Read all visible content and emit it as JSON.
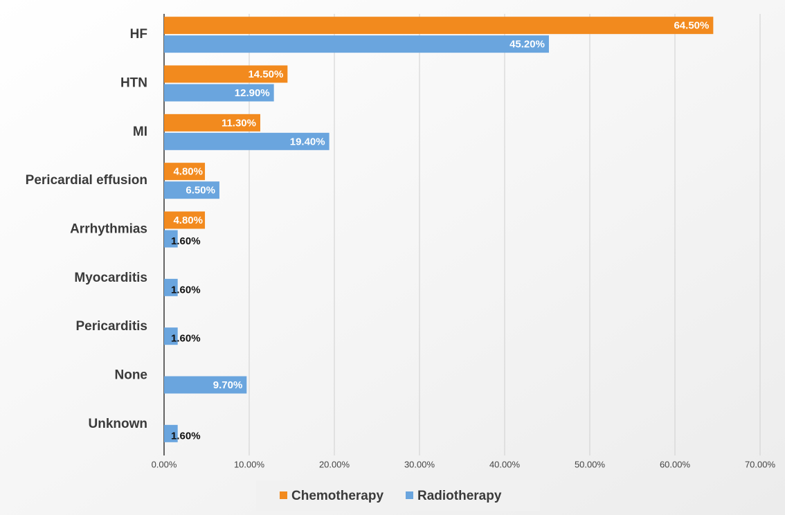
{
  "chart_data": {
    "type": "bar",
    "orientation": "horizontal",
    "categories": [
      "HF",
      "HTN",
      "MI",
      "Pericardial effusion",
      "Arrhythmias",
      "Myocarditis",
      "Pericarditis",
      "None",
      "Unknown"
    ],
    "series": [
      {
        "name": "Chemotherapy",
        "color": "#f28a1e",
        "values": [
          64.5,
          14.5,
          11.3,
          4.8,
          4.8,
          null,
          null,
          null,
          null
        ],
        "value_labels": [
          "64.50%",
          "14.50%",
          "11.30%",
          "4.80%",
          "4.80%",
          null,
          null,
          null,
          null
        ]
      },
      {
        "name": "Radiotherapy",
        "color": "#6aa5de",
        "values": [
          45.2,
          12.9,
          19.4,
          6.5,
          1.6,
          1.6,
          1.6,
          9.7,
          1.6
        ],
        "value_labels": [
          "45.20%",
          "12.90%",
          "19.40%",
          "6.50%",
          "1.60%",
          "1.60%",
          "1.60%",
          "9.70%",
          "1.60%"
        ]
      }
    ],
    "xlim": [
      0,
      70
    ],
    "xticks": [
      {
        "value": 0,
        "label": "0.00%"
      },
      {
        "value": 10,
        "label": "10.00%"
      },
      {
        "value": 20,
        "label": "20.00%"
      },
      {
        "value": 30,
        "label": "30.00%"
      },
      {
        "value": 40,
        "label": "40.00%"
      },
      {
        "value": 50,
        "label": "50.00%"
      },
      {
        "value": 60,
        "label": "60.00%"
      },
      {
        "value": 70,
        "label": "70.00%"
      }
    ],
    "grid": true,
    "legend": "bottom"
  }
}
